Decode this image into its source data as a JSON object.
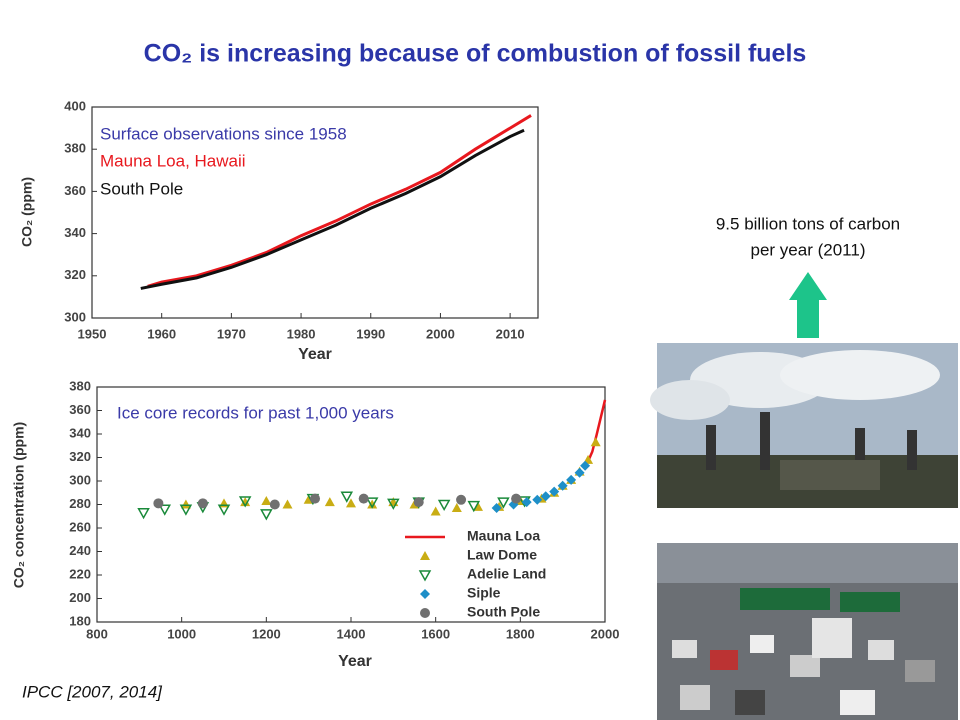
{
  "title": "CO₂ is increasing because of combustion of fossil fuels",
  "emissions_note": {
    "lines": [
      "9.5 billion tons of carbon",
      "per year (2011)"
    ]
  },
  "source": "IPCC [2007, 2014]",
  "chart_data": [
    {
      "type": "line",
      "subtitle": "Surface observations since 1958",
      "xlabel": "Year",
      "ylabel": "CO₂ (ppm)",
      "xlim": [
        1950,
        2014
      ],
      "xticks": [
        1950,
        1960,
        1970,
        1980,
        1990,
        2000,
        2010
      ],
      "ylim": [
        300,
        400
      ],
      "yticks": [
        300,
        320,
        340,
        360,
        380,
        400
      ],
      "series": [
        {
          "name": "Mauna Loa, Hawaii",
          "color": "#e8181e",
          "x": [
            1958,
            1960,
            1965,
            1970,
            1975,
            1980,
            1985,
            1990,
            1995,
            2000,
            2005,
            2010,
            2013
          ],
          "values": [
            315,
            317,
            320,
            325,
            331,
            339,
            346,
            354,
            361,
            369,
            380,
            390,
            396
          ]
        },
        {
          "name": "South Pole",
          "color": "#111111",
          "x": [
            1957,
            1960,
            1965,
            1970,
            1975,
            1980,
            1985,
            1990,
            1995,
            2000,
            2005,
            2010,
            2012
          ],
          "values": [
            314,
            316,
            319,
            324,
            330,
            337,
            344,
            352,
            359,
            367,
            377,
            386,
            389
          ]
        }
      ]
    },
    {
      "type": "scatter",
      "annotation": "Ice core records for past 1,000 years",
      "xlabel": "Year",
      "ylabel": "CO₂ concentration (ppm)",
      "xlim": [
        800,
        2000
      ],
      "xticks": [
        800,
        1000,
        1200,
        1400,
        1600,
        1800,
        2000
      ],
      "ylim": [
        180,
        380
      ],
      "yticks": [
        180,
        200,
        220,
        240,
        260,
        280,
        300,
        320,
        340,
        360,
        380
      ],
      "legend": "lower right",
      "series": [
        {
          "name": "Mauna Loa",
          "color": "#e8181e",
          "marker": "line",
          "x": [
            1958,
            1970,
            1980,
            1990,
            2000
          ],
          "values": [
            315,
            325,
            339,
            354,
            369
          ]
        },
        {
          "name": "Law Dome",
          "color": "#c9ad14",
          "marker": "triangle",
          "x": [
            1010,
            1100,
            1150,
            1200,
            1250,
            1300,
            1350,
            1400,
            1450,
            1500,
            1550,
            1600,
            1650,
            1700,
            1750,
            1800,
            1850,
            1880,
            1900,
            1920,
            1940,
            1960,
            1978
          ],
          "values": [
            280,
            281,
            282,
            283,
            280,
            284,
            282,
            281,
            280,
            282,
            280,
            274,
            277,
            278,
            278,
            283,
            285,
            290,
            296,
            301,
            308,
            318,
            333
          ]
        },
        {
          "name": "Adelie Land",
          "color": "#1a8a3a",
          "marker": "triangle-down",
          "x": [
            910,
            960,
            1010,
            1050,
            1100,
            1150,
            1200,
            1310,
            1390,
            1450,
            1500,
            1560,
            1620,
            1690,
            1760,
            1810
          ],
          "values": [
            273,
            276,
            276,
            278,
            276,
            283,
            272,
            285,
            287,
            282,
            281,
            282,
            280,
            279,
            282,
            283
          ]
        },
        {
          "name": "Siple",
          "color": "#1e8fc8",
          "marker": "diamond",
          "x": [
            1744,
            1784,
            1815,
            1840,
            1860,
            1880,
            1900,
            1920,
            1940,
            1953
          ],
          "values": [
            277,
            280,
            282,
            284,
            287,
            291,
            296,
            301,
            307,
            313
          ]
        },
        {
          "name": "South Pole",
          "color": "#707070",
          "marker": "circle",
          "x": [
            945,
            1050,
            1220,
            1315,
            1430,
            1560,
            1660,
            1790
          ],
          "values": [
            281,
            281,
            280,
            285,
            285,
            282,
            284,
            285
          ]
        }
      ]
    }
  ]
}
